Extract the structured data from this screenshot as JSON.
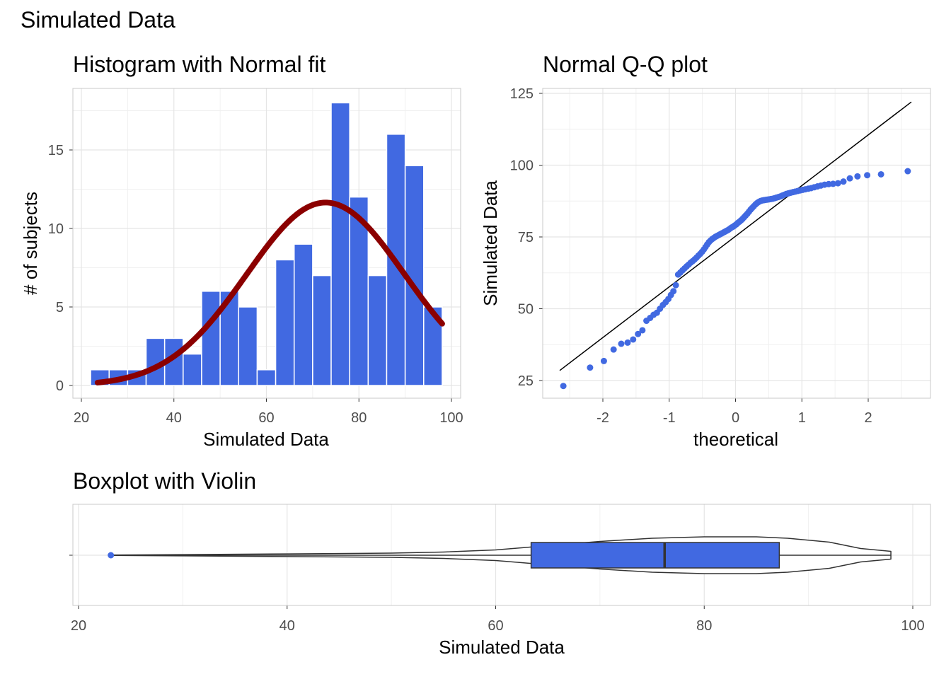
{
  "title": "Simulated Data",
  "colors": {
    "bar_fill": "#4169E1",
    "normal_curve": "#8B0000",
    "point": "#4169E1",
    "grid": "#e5e5e5",
    "panel_border": "#c8c8c8"
  },
  "chart_data": [
    {
      "type": "bar",
      "title": "Histogram with Normal fit",
      "xlabel": "Simulated Data",
      "ylabel": "# of subjects",
      "xlim": [
        20,
        100
      ],
      "ylim": [
        0,
        18
      ],
      "xticks": [
        "20",
        "40",
        "60",
        "80",
        "100"
      ],
      "yticks": [
        "0",
        "5",
        "10",
        "15"
      ],
      "grid": true,
      "bins": [
        {
          "x0": 22,
          "x1": 26,
          "count": 1
        },
        {
          "x0": 26,
          "x1": 30,
          "count": 1
        },
        {
          "x0": 30,
          "x1": 34,
          "count": 1
        },
        {
          "x0": 34,
          "x1": 38,
          "count": 3
        },
        {
          "x0": 38,
          "x1": 42,
          "count": 3
        },
        {
          "x0": 42,
          "x1": 46,
          "count": 2
        },
        {
          "x0": 46,
          "x1": 50,
          "count": 6
        },
        {
          "x0": 50,
          "x1": 54,
          "count": 6
        },
        {
          "x0": 54,
          "x1": 58,
          "count": 5
        },
        {
          "x0": 58,
          "x1": 62,
          "count": 1
        },
        {
          "x0": 62,
          "x1": 66,
          "count": 8
        },
        {
          "x0": 66,
          "x1": 70,
          "count": 9
        },
        {
          "x0": 70,
          "x1": 74,
          "count": 7
        },
        {
          "x0": 74,
          "x1": 78,
          "count": 18
        },
        {
          "x0": 78,
          "x1": 82,
          "count": 12
        },
        {
          "x0": 82,
          "x1": 86,
          "count": 7
        },
        {
          "x0": 86,
          "x1": 90,
          "count": 16
        },
        {
          "x0": 90,
          "x1": 94,
          "count": 14
        },
        {
          "x0": 94,
          "x1": 98,
          "count": 5
        }
      ],
      "normal_fit": {
        "mean": 72.8,
        "sd": 17.1,
        "peak": 11.65,
        "x_range": [
          23.5,
          98
        ]
      }
    },
    {
      "type": "scatter",
      "title": "Normal Q-Q plot",
      "xlabel": "theoretical",
      "ylabel": "Simulated Data",
      "xlim": [
        -2.9,
        2.9
      ],
      "ylim": [
        20,
        126
      ],
      "xticks": [
        "-2",
        "-1",
        "0",
        "1",
        "2"
      ],
      "yticks": [
        "25",
        "50",
        "75",
        "100",
        "125"
      ],
      "grid": true,
      "reference_line": {
        "x": [
          -2.65,
          2.65
        ],
        "y": [
          28.5,
          122
        ]
      },
      "sample": [
        23.1,
        29.5,
        31.8,
        35.8,
        37.8,
        38.2,
        39.3,
        41.2,
        42.5,
        45.8,
        46.8,
        47.9,
        48.6,
        50,
        51.3,
        52.3,
        53.4,
        54.8,
        56.1,
        58.2,
        61.9,
        62.6,
        63.4,
        64.1,
        64.8,
        65.4,
        66.1,
        66.6,
        67.2,
        67.8,
        68.5,
        69.1,
        69.8,
        70.6,
        71.5,
        72.4,
        73.2,
        73.8,
        74.3,
        74.7,
        75.1,
        75.4,
        75.7,
        76,
        76.3,
        76.6,
        76.9,
        77.2,
        77.5,
        77.9,
        78.3,
        78.6,
        79,
        79.4,
        79.9,
        80.3,
        80.8,
        81.3,
        81.9,
        82.5,
        83.1,
        83.8,
        84.5,
        85.1,
        85.7,
        86.3,
        86.8,
        87.2,
        87.5,
        87.7,
        87.8,
        87.9,
        88,
        88.1,
        88.2,
        88.3,
        88.5,
        88.7,
        88.9,
        89.1,
        89.4,
        89.7,
        90,
        90.2,
        90.4,
        90.6,
        90.8,
        91,
        91.2,
        91.4,
        91.6,
        91.8,
        92,
        92.3,
        92.6,
        92.9,
        93.2,
        93.4,
        93.5,
        93.7,
        94.3,
        95.4,
        96.1,
        96.5,
        96.8,
        97.9
      ]
    },
    {
      "type": "box",
      "title": "Boxplot with Violin",
      "xlabel": "Simulated Data",
      "xlim": [
        19,
        101
      ],
      "xticks": [
        "20",
        "40",
        "60",
        "80",
        "100"
      ],
      "grid": true,
      "box": {
        "min": 23.1,
        "q1": 63.4,
        "median": 76.2,
        "q3": 87.2,
        "max": 97.9,
        "outliers": [
          23.1
        ]
      },
      "violin": {
        "x": [
          23.1,
          30,
          40,
          50,
          55,
          60,
          65,
          70,
          75,
          80,
          85,
          88,
          92,
          95,
          97.9
        ],
        "half_width": [
          0.2,
          0.9,
          1.9,
          3.0,
          4.5,
          7.5,
          13.5,
          19.5,
          24.0,
          26.0,
          26.0,
          24.0,
          18.5,
          9.5,
          5.5
        ]
      }
    }
  ]
}
